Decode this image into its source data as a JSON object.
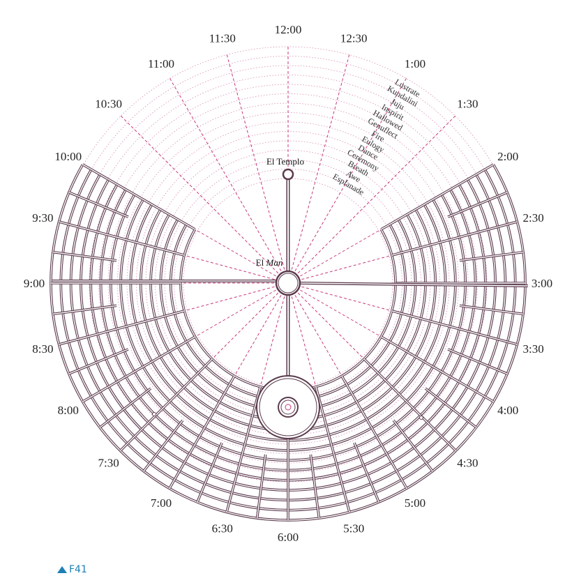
{
  "map": {
    "clock_labels": [
      "12:00",
      "12:30",
      "1:00",
      "1:30",
      "2:00",
      "2:30",
      "3:00",
      "3:30",
      "4:00",
      "4:30",
      "5:00",
      "5:30",
      "6:00",
      "6:30",
      "7:00",
      "7:30",
      "8:00",
      "8:30",
      "9:00",
      "9:30",
      "10:00",
      "10:30",
      "11:00",
      "11:30"
    ],
    "street_names": [
      "Esplanade",
      "Awe",
      "Breath",
      "Ceremony",
      "Dance",
      "Eulogy",
      "Fire",
      "Genuflect",
      "Hallowed",
      "Inspirit",
      "Juju",
      "Kundalini",
      "Lustrate"
    ],
    "landmarks": {
      "temple": "El Templo",
      "man_prefix": "El ",
      "man_name": "Man"
    },
    "colors": {
      "road": "#5a3a4c",
      "radial": "#c8377a",
      "ring": "#d68ab2",
      "text": "#222222"
    }
  },
  "caption": {
    "icon": "up-triangle-icon",
    "label": "F41"
  }
}
